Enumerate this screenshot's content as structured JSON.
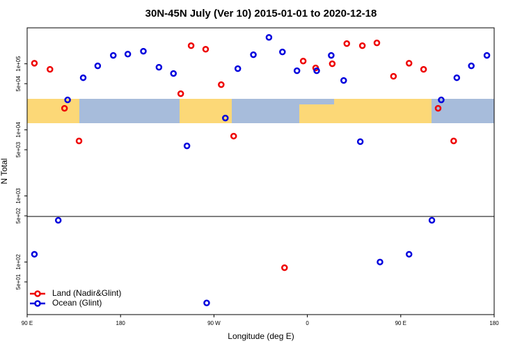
{
  "chart_data": {
    "type": "scatter",
    "title": "30N-45N July (Ver 10)   2015-01-01 to 2020-12-18",
    "xlabel": "Longitude (deg E)",
    "ylabel": "N Total",
    "log_scale_y": true,
    "xlim": [
      90,
      540
    ],
    "ylim": [
      16,
      350000
    ],
    "xticks": [
      {
        "value": 90,
        "label": "90 E"
      },
      {
        "value": 180,
        "label": "180"
      },
      {
        "value": 270,
        "label": "90 W"
      },
      {
        "value": 360,
        "label": "0"
      },
      {
        "value": 450,
        "label": "90 E"
      },
      {
        "value": 540,
        "label": "180"
      }
    ],
    "yticks": [
      {
        "value": 50,
        "label": "5e+01"
      },
      {
        "value": 100,
        "label": "1e+02"
      },
      {
        "value": 500,
        "label": "5e+02"
      },
      {
        "value": 1000,
        "label": "1e+03"
      },
      {
        "value": 5000,
        "label": "5e+03"
      },
      {
        "value": 10000,
        "label": "1e+04"
      },
      {
        "value": 50000,
        "label": "5e+04"
      },
      {
        "value": 100000,
        "label": "1e+05"
      }
    ],
    "legend": "bottom-left",
    "series": [
      {
        "name": "Land (Nadir&Glint)",
        "color": "#ee0000",
        "x": [
          97,
          112,
          126,
          140,
          238,
          248,
          262,
          277,
          289,
          338,
          356,
          368,
          384,
          398,
          413,
          427,
          443,
          458,
          472,
          486,
          501
        ],
        "values": [
          102000,
          82400,
          21200,
          6790,
          35300,
          188000,
          166000,
          48300,
          8040,
          82,
          110000,
          86500,
          100000,
          202000,
          188000,
          207000,
          64700,
          102000,
          82400,
          21200,
          6790
        ]
      },
      {
        "name": "Ocean (Glint)",
        "color": "#0000dd",
        "x": [
          97,
          120,
          129,
          144,
          158,
          173,
          187,
          202,
          217,
          231,
          244,
          263,
          281,
          293,
          308,
          323,
          336,
          350,
          369,
          383,
          395,
          411,
          430,
          458,
          480,
          489,
          504,
          518,
          533
        ],
        "values": [
          131,
          428,
          28400,
          61500,
          93000,
          134000,
          140000,
          155000,
          88600,
          71300,
          5720,
          24,
          15100,
          84400,
          137000,
          251000,
          151000,
          78500,
          78500,
          134000,
          55900,
          6630,
          100,
          131,
          428,
          28400,
          61500,
          93000,
          134000
        ]
      }
    ]
  }
}
